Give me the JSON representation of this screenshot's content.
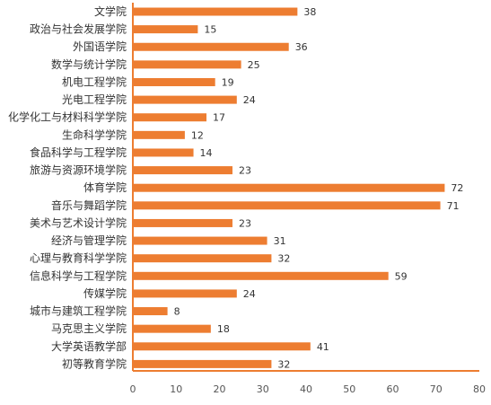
{
  "chart_data": {
    "type": "bar",
    "orientation": "horizontal",
    "categories": [
      "文学院",
      "政治与社会发展学院",
      "外国语学院",
      "数学与统计学院",
      "机电工程学院",
      "光电工程学院",
      "化学化工与材料科学学院",
      "生命科学学院",
      "食品科学与工程学院",
      "旅游与资源环境学院",
      "体育学院",
      "音乐与舞蹈学院",
      "美术与艺术设计学院",
      "经济与管理学院",
      "心理与教育科学学院",
      "信息科学与工程学院",
      "传媒学院",
      "城市与建筑工程学院",
      "马克思主义学院",
      "大学英语教学部",
      "初等教育学院"
    ],
    "values": [
      38,
      15,
      36,
      25,
      19,
      24,
      17,
      12,
      14,
      23,
      72,
      71,
      23,
      31,
      32,
      59,
      24,
      8,
      18,
      41,
      32
    ],
    "xlim": [
      0,
      80
    ],
    "xticks": [
      0,
      10,
      20,
      30,
      40,
      50,
      60,
      70,
      80
    ],
    "title": "",
    "xlabel": "",
    "ylabel": "",
    "bar_color": "#ED7D31",
    "axis_color": "#ED7D31",
    "data_labels": true,
    "grid": false,
    "legend": "none"
  }
}
